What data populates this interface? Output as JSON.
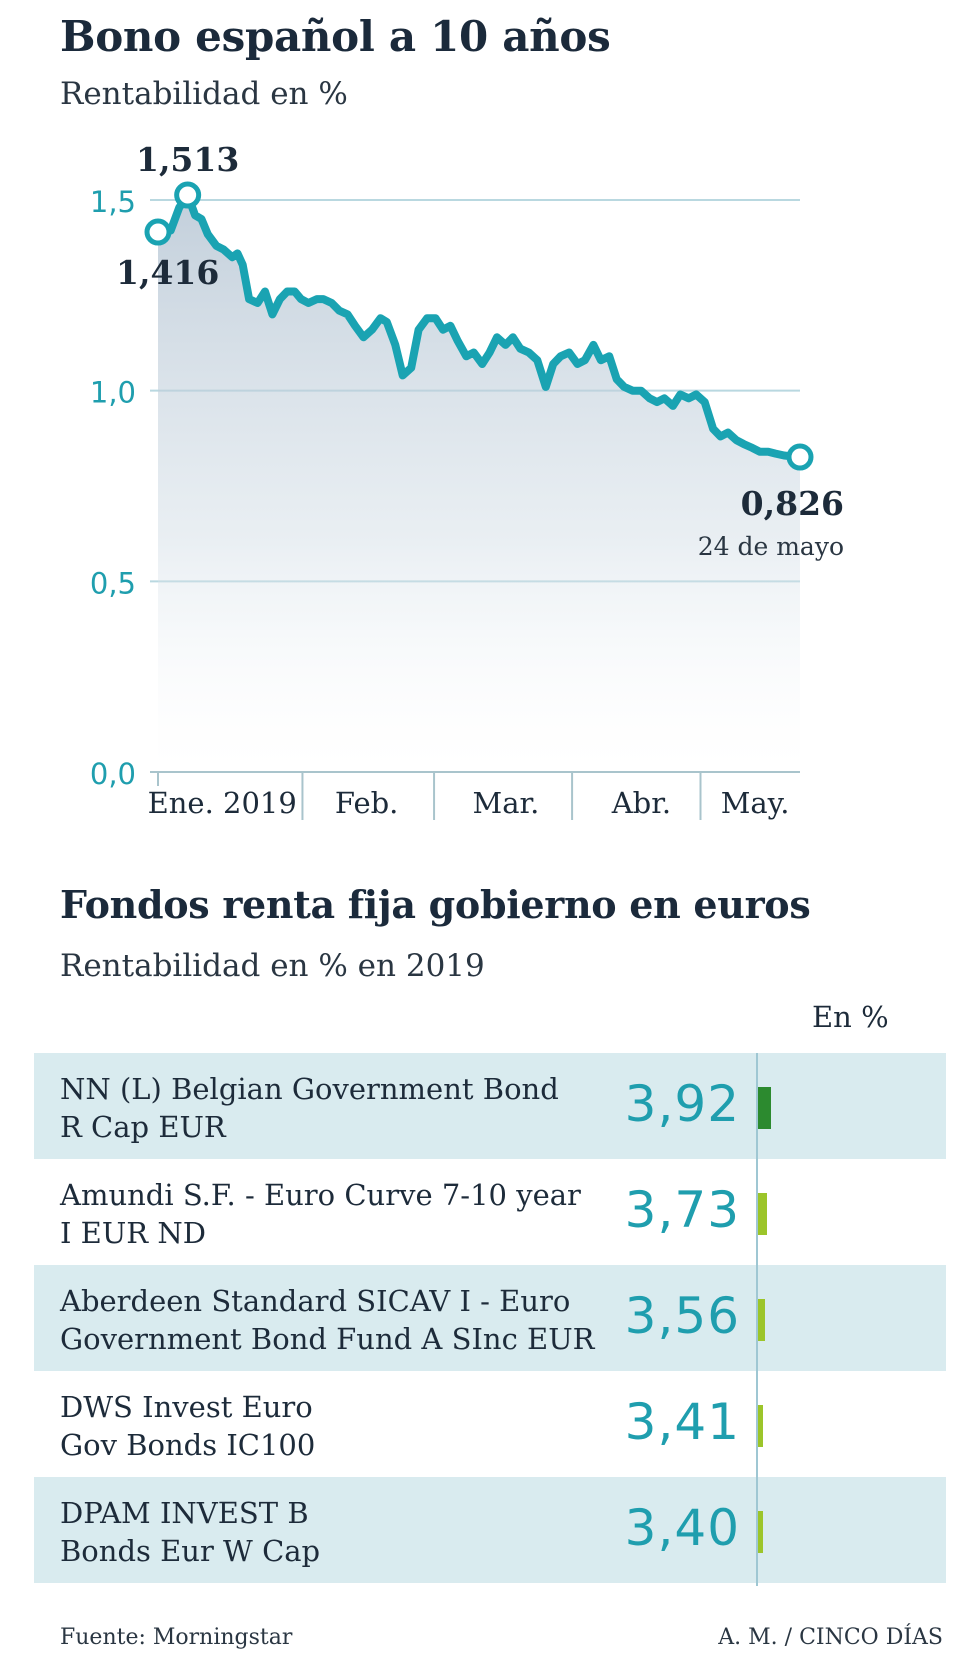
{
  "chart_data": [
    {
      "type": "line",
      "title": "Bono español a 10 años",
      "subtitle": "Rentabilidad en %",
      "ylim": [
        0,
        1.6
      ],
      "yticks": [
        0.0,
        0.5,
        1.0,
        1.5
      ],
      "ytick_labels": [
        "0,0",
        "0,5",
        "1,0",
        "1,5"
      ],
      "xlim": [
        0,
        1
      ],
      "month_labels": [
        {
          "label": "Ene. 2019",
          "x": 0.1
        },
        {
          "label": "Feb.",
          "x": 0.325
        },
        {
          "label": "Mar.",
          "x": 0.542
        },
        {
          "label": "Abr.",
          "x": 0.753
        },
        {
          "label": "May.",
          "x": 0.93
        }
      ],
      "month_ticks": [
        0.225,
        0.43,
        0.645,
        0.845
      ],
      "series": [
        {
          "name": "Rentabilidad",
          "x": [
            0,
            0.0198,
            0.033,
            0.0462,
            0.0578,
            0.0677,
            0.0776,
            0.0908,
            0.1023,
            0.1155,
            0.1238,
            0.132,
            0.1419,
            0.1551,
            0.1667,
            0.1782,
            0.1898,
            0.2013,
            0.2129,
            0.2228,
            0.2343,
            0.2475,
            0.2574,
            0.2706,
            0.2822,
            0.2954,
            0.307,
            0.3201,
            0.3333,
            0.3465,
            0.3564,
            0.3696,
            0.3812,
            0.3944,
            0.4059,
            0.4191,
            0.4323,
            0.4439,
            0.4554,
            0.467,
            0.4802,
            0.4917,
            0.505,
            0.5165,
            0.5281,
            0.5413,
            0.5528,
            0.5644,
            0.5776,
            0.5908,
            0.604,
            0.6155,
            0.6271,
            0.6403,
            0.6535,
            0.665,
            0.6782,
            0.6898,
            0.703,
            0.7145,
            0.7261,
            0.7393,
            0.7525,
            0.7657,
            0.7772,
            0.7888,
            0.802,
            0.8135,
            0.8267,
            0.8383,
            0.8515,
            0.8647,
            0.8762,
            0.8878,
            0.901,
            0.9125,
            0.9257,
            0.9373,
            0.9505,
            0.962,
            0.9752,
            0.9868,
            1.0
          ],
          "y": [
            1.416,
            1.42,
            1.48,
            1.513,
            1.46,
            1.45,
            1.41,
            1.38,
            1.37,
            1.35,
            1.36,
            1.33,
            1.24,
            1.23,
            1.26,
            1.2,
            1.24,
            1.26,
            1.26,
            1.24,
            1.23,
            1.24,
            1.24,
            1.23,
            1.21,
            1.2,
            1.17,
            1.14,
            1.16,
            1.19,
            1.18,
            1.12,
            1.04,
            1.06,
            1.16,
            1.19,
            1.19,
            1.16,
            1.17,
            1.13,
            1.09,
            1.1,
            1.07,
            1.1,
            1.14,
            1.12,
            1.14,
            1.11,
            1.1,
            1.08,
            1.01,
            1.07,
            1.09,
            1.1,
            1.07,
            1.08,
            1.12,
            1.08,
            1.09,
            1.03,
            1.01,
            1.0,
            1.0,
            0.98,
            0.97,
            0.98,
            0.96,
            0.99,
            0.98,
            0.99,
            0.97,
            0.9,
            0.88,
            0.89,
            0.87,
            0.86,
            0.85,
            0.84,
            0.84,
            0.835,
            0.83,
            0.828,
            0.826
          ]
        }
      ],
      "annotations": [
        {
          "label": "1,416",
          "point_index": 0
        },
        {
          "label": "1,513",
          "point_index": 3
        },
        {
          "label": "0,826",
          "note": "24 de mayo",
          "point_index": 82
        }
      ]
    },
    {
      "type": "bar",
      "title": "Fondos renta fija gobierno en euros",
      "subtitle": "Rentabilidad en % en 2019",
      "unit_label": "En %",
      "categories": [
        "NN (L) Belgian Government Bond R Cap EUR",
        "Amundi S.F. - Euro Curve 7-10 year I EUR ND",
        "Aberdeen Standard SICAV I - Euro Government Bond Fund A SInc EUR",
        "DWS Invest Euro Gov Bonds IC100",
        "DPAM INVEST B Bonds Eur W Cap"
      ],
      "values": [
        3.92,
        3.73,
        3.56,
        3.41,
        3.4
      ],
      "value_labels": [
        "3,92",
        "3,73",
        "3,56",
        "3,41",
        "3,40"
      ],
      "bar_colors": [
        "#2c8a2f",
        "#9cc52a",
        "#9cc52a",
        "#9cc52a",
        "#9cc52a"
      ]
    }
  ],
  "funds": [
    {
      "line1": "NN (L) Belgian Government Bond",
      "line2": "R Cap EUR",
      "value": "3,92"
    },
    {
      "line1": "Amundi S.F. - Euro Curve 7-10 year",
      "line2": "I EUR ND",
      "value": "3,73"
    },
    {
      "line1": "Aberdeen Standard SICAV I - Euro",
      "line2": "Government Bond Fund A SInc EUR",
      "value": "3,56"
    },
    {
      "line1": "DWS Invest Euro",
      "line2": "Gov Bonds IC100",
      "value": "3,41"
    },
    {
      "line1": "DPAM INVEST B",
      "line2": "Bonds Eur W Cap",
      "value": "3,40"
    }
  ],
  "footer": {
    "source": "Fuente: Morningstar",
    "credit": "A. M. / CINCO DÍAS"
  },
  "colors": {
    "line": "#1aa3b2",
    "axis_text": "#1f9eae",
    "grid": "#b9d8e0",
    "row_shade": "#d9ebef",
    "bar_top": "#2c8a2f",
    "bar_other": "#9cc52a"
  }
}
